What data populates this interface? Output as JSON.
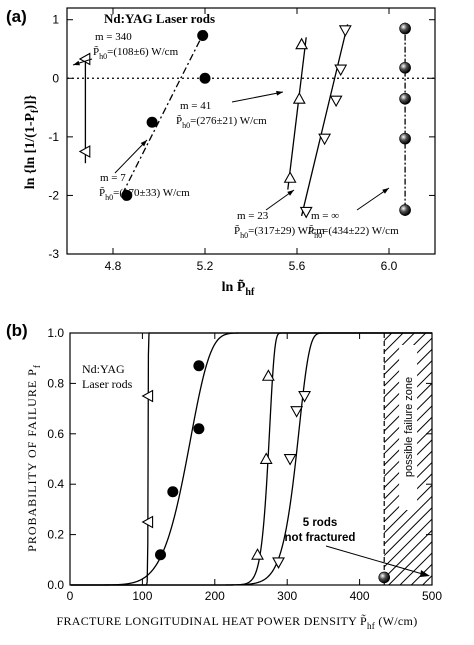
{
  "chart_data": [
    {
      "panel_label": "(a)",
      "type": "scatter",
      "title": "Nd:YAG Laser rods",
      "xlabel": "ln P̃hf",
      "ylabel": "ln {ln [1/(1-Pf)]}",
      "xlim": [
        4.6,
        6.2
      ],
      "ylim": [
        -3,
        1.2
      ],
      "xticks": [
        "4.8",
        "5.2",
        "5.6",
        "6.0"
      ],
      "yticks": [
        "-3",
        "-2",
        "-1",
        "0",
        "1"
      ],
      "reference_line_y": 0,
      "series": [
        {
          "marker": "triangle-left",
          "points": [
            [
              4.68,
              0.33
            ],
            [
              4.68,
              -1.25
            ]
          ],
          "fit": [
            [
              4.68,
              0.36
            ],
            [
              4.68,
              -1.45
            ]
          ]
        },
        {
          "marker": "circle",
          "points": [
            [
              4.86,
              -2.0
            ],
            [
              4.97,
              -0.75
            ],
            [
              5.19,
              0.73
            ],
            [
              5.2,
              0.0
            ]
          ],
          "fit": [
            [
              4.84,
              -1.98
            ],
            [
              5.2,
              0.82
            ]
          ]
        },
        {
          "marker": "triangle-up",
          "points": [
            [
              5.57,
              -1.7
            ],
            [
              5.61,
              -0.35
            ],
            [
              5.62,
              0.58
            ]
          ],
          "fit": [
            [
              5.56,
              -1.9
            ],
            [
              5.64,
              0.7
            ]
          ]
        },
        {
          "marker": "triangle-down",
          "points": [
            [
              5.64,
              -2.28
            ],
            [
              5.72,
              -1.03
            ],
            [
              5.77,
              -0.38
            ],
            [
              5.79,
              0.15
            ],
            [
              5.81,
              0.82
            ]
          ],
          "fit": [
            [
              5.62,
              -2.35
            ],
            [
              5.82,
              0.92
            ]
          ]
        },
        {
          "marker": "sphere",
          "points": [
            [
              6.07,
              0.85
            ],
            [
              6.07,
              0.18
            ],
            [
              6.07,
              -0.35
            ],
            [
              6.07,
              -1.03
            ],
            [
              6.07,
              -2.25
            ]
          ],
          "fit": [
            [
              6.07,
              0.95
            ],
            [
              6.07,
              -2.35
            ]
          ]
        }
      ],
      "annotations": [
        {
          "m": "m = 340",
          "p": "P̃h0=(108±6) W/cm"
        },
        {
          "m": "m = 41",
          "p": "P̃h0=(276±21) W/cm"
        },
        {
          "m": "m = 7",
          "p": "P̃h0=(170±33) W/cm"
        },
        {
          "m": "m = 23",
          "p": "P̃h0=(317±29) W/cm"
        },
        {
          "m": "m = ∞",
          "p": "P̃h0=(434±22) W/cm"
        }
      ]
    },
    {
      "panel_label": "(b)",
      "type": "scatter",
      "legend_text": [
        "Nd:YAG",
        "Laser rods"
      ],
      "xlabel": "FRACTURE LONGITUDINAL HEAT POWER DENSITY P̃hf (W/cm)",
      "ylabel": "PROBABILITY OF FAILURE Pf",
      "xlim": [
        0,
        500
      ],
      "ylim": [
        0,
        1.0
      ],
      "xticks": [
        "0",
        "100",
        "200",
        "300",
        "400",
        "500"
      ],
      "yticks": [
        "0.0",
        "0.2",
        "0.4",
        "0.6",
        "0.8",
        "1.0"
      ],
      "zone_label": "possible failure zone",
      "zone_start_x": 434,
      "callout": [
        "5 rods",
        "not fractured"
      ],
      "series": [
        {
          "marker": "triangle-left",
          "P0": 108,
          "m": 340,
          "points": [
            [
              108,
              0.75
            ],
            [
              108,
              0.25
            ]
          ]
        },
        {
          "marker": "circle",
          "P0": 170,
          "m": 7,
          "points": [
            [
              125,
              0.12
            ],
            [
              142,
              0.37
            ],
            [
              178,
              0.87
            ],
            [
              178,
              0.62
            ]
          ]
        },
        {
          "marker": "triangle-up",
          "P0": 276,
          "m": 41,
          "points": [
            [
              259,
              0.12
            ],
            [
              271,
              0.5
            ],
            [
              274,
              0.83
            ]
          ]
        },
        {
          "marker": "triangle-down",
          "P0": 317,
          "m": 23,
          "points": [
            [
              288,
              0.09
            ],
            [
              304,
              0.5
            ],
            [
              313,
              0.69
            ],
            [
              324,
              0.75
            ]
          ]
        },
        {
          "marker": "sphere",
          "P0": 434,
          "points": [
            [
              434,
              0.03
            ]
          ]
        }
      ]
    }
  ]
}
